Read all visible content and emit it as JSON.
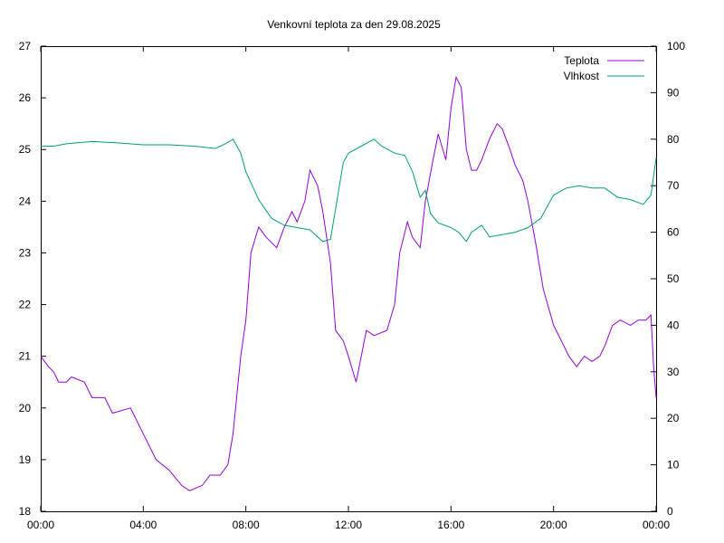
{
  "chart_data": {
    "type": "line",
    "title": "Venkovní teplota za den 29.08.2025",
    "xlabel": "",
    "ylabel": "",
    "y2label": "",
    "x_ticks": [
      "00:00",
      "04:00",
      "08:00",
      "12:00",
      "16:00",
      "20:00",
      "00:00"
    ],
    "x_range_hours": [
      0,
      24
    ],
    "y_range": [
      18,
      27
    ],
    "y_ticks": [
      "18",
      "19",
      "20",
      "21",
      "22",
      "23",
      "24",
      "25",
      "26",
      "27"
    ],
    "y2_range": [
      0,
      100
    ],
    "y2_ticks": [
      "0",
      "10",
      "20",
      "30",
      "40",
      "50",
      "60",
      "70",
      "80",
      "90",
      "100"
    ],
    "legend_position": "top-right",
    "grid": false,
    "series": [
      {
        "name": "Teplota",
        "axis": "left",
        "color": "#9400d3",
        "points": [
          [
            0.0,
            21.0
          ],
          [
            0.3,
            20.8
          ],
          [
            0.5,
            20.7
          ],
          [
            0.7,
            20.5
          ],
          [
            1.0,
            20.5
          ],
          [
            1.2,
            20.6
          ],
          [
            1.7,
            20.5
          ],
          [
            2.0,
            20.2
          ],
          [
            2.5,
            20.2
          ],
          [
            2.8,
            19.9
          ],
          [
            3.5,
            20.0
          ],
          [
            3.6,
            19.9
          ],
          [
            4.0,
            19.5
          ],
          [
            4.5,
            19.0
          ],
          [
            5.0,
            18.8
          ],
          [
            5.5,
            18.5
          ],
          [
            5.8,
            18.4
          ],
          [
            6.3,
            18.5
          ],
          [
            6.6,
            18.7
          ],
          [
            7.0,
            18.7
          ],
          [
            7.3,
            18.9
          ],
          [
            7.5,
            19.5
          ],
          [
            7.8,
            21.0
          ],
          [
            8.0,
            21.7
          ],
          [
            8.2,
            23.0
          ],
          [
            8.5,
            23.5
          ],
          [
            8.8,
            23.3
          ],
          [
            9.2,
            23.1
          ],
          [
            9.5,
            23.5
          ],
          [
            9.8,
            23.8
          ],
          [
            10.0,
            23.6
          ],
          [
            10.3,
            24.0
          ],
          [
            10.5,
            24.6
          ],
          [
            10.8,
            24.3
          ],
          [
            11.0,
            23.8
          ],
          [
            11.3,
            22.8
          ],
          [
            11.5,
            21.5
          ],
          [
            11.8,
            21.3
          ],
          [
            12.0,
            21.0
          ],
          [
            12.3,
            20.5
          ],
          [
            12.5,
            21.0
          ],
          [
            12.7,
            21.5
          ],
          [
            13.0,
            21.4
          ],
          [
            13.5,
            21.5
          ],
          [
            13.8,
            22.0
          ],
          [
            14.0,
            23.0
          ],
          [
            14.3,
            23.6
          ],
          [
            14.5,
            23.3
          ],
          [
            14.8,
            23.1
          ],
          [
            15.0,
            24.0
          ],
          [
            15.3,
            24.8
          ],
          [
            15.5,
            25.3
          ],
          [
            15.8,
            24.8
          ],
          [
            16.0,
            25.8
          ],
          [
            16.2,
            26.4
          ],
          [
            16.4,
            26.2
          ],
          [
            16.6,
            25.0
          ],
          [
            16.8,
            24.6
          ],
          [
            17.0,
            24.6
          ],
          [
            17.2,
            24.8
          ],
          [
            17.5,
            25.2
          ],
          [
            17.8,
            25.5
          ],
          [
            18.0,
            25.4
          ],
          [
            18.3,
            25.0
          ],
          [
            18.5,
            24.7
          ],
          [
            18.8,
            24.4
          ],
          [
            19.0,
            24.0
          ],
          [
            19.3,
            23.2
          ],
          [
            19.6,
            22.3
          ],
          [
            20.0,
            21.6
          ],
          [
            20.3,
            21.3
          ],
          [
            20.6,
            21.0
          ],
          [
            20.9,
            20.8
          ],
          [
            21.2,
            21.0
          ],
          [
            21.5,
            20.9
          ],
          [
            21.8,
            21.0
          ],
          [
            22.0,
            21.2
          ],
          [
            22.3,
            21.6
          ],
          [
            22.6,
            21.7
          ],
          [
            23.0,
            21.6
          ],
          [
            23.3,
            21.7
          ],
          [
            23.6,
            21.7
          ],
          [
            23.8,
            21.8
          ],
          [
            23.9,
            20.8
          ],
          [
            24.0,
            20.2
          ]
        ]
      },
      {
        "name": "Vlhkost",
        "axis": "right",
        "color": "#009e73",
        "points": [
          [
            0.0,
            78.5
          ],
          [
            0.5,
            78.5
          ],
          [
            1.0,
            79.0
          ],
          [
            2.0,
            79.5
          ],
          [
            3.0,
            79.2
          ],
          [
            4.0,
            78.8
          ],
          [
            5.0,
            78.8
          ],
          [
            6.0,
            78.5
          ],
          [
            6.8,
            78.0
          ],
          [
            7.2,
            79.0
          ],
          [
            7.5,
            80.0
          ],
          [
            7.8,
            77.0
          ],
          [
            8.0,
            73.0
          ],
          [
            8.5,
            67.0
          ],
          [
            9.0,
            63.0
          ],
          [
            9.5,
            61.5
          ],
          [
            10.0,
            61.0
          ],
          [
            10.5,
            60.5
          ],
          [
            11.0,
            58.0
          ],
          [
            11.3,
            58.5
          ],
          [
            11.5,
            65.0
          ],
          [
            11.8,
            75.0
          ],
          [
            12.0,
            77.0
          ],
          [
            12.5,
            78.5
          ],
          [
            13.0,
            80.0
          ],
          [
            13.3,
            78.5
          ],
          [
            13.8,
            77.0
          ],
          [
            14.2,
            76.5
          ],
          [
            14.5,
            73.0
          ],
          [
            14.8,
            67.5
          ],
          [
            15.0,
            69.0
          ],
          [
            15.2,
            64.0
          ],
          [
            15.5,
            62.0
          ],
          [
            16.0,
            61.0
          ],
          [
            16.3,
            60.0
          ],
          [
            16.6,
            58.0
          ],
          [
            16.8,
            60.0
          ],
          [
            17.2,
            61.5
          ],
          [
            17.5,
            59.0
          ],
          [
            18.0,
            59.5
          ],
          [
            18.5,
            60.0
          ],
          [
            19.0,
            61.0
          ],
          [
            19.5,
            63.0
          ],
          [
            20.0,
            68.0
          ],
          [
            20.5,
            69.5
          ],
          [
            21.0,
            70.0
          ],
          [
            21.5,
            69.5
          ],
          [
            22.0,
            69.5
          ],
          [
            22.5,
            67.5
          ],
          [
            23.0,
            67.0
          ],
          [
            23.5,
            66.0
          ],
          [
            23.8,
            68.0
          ],
          [
            24.0,
            76.0
          ]
        ]
      }
    ]
  }
}
